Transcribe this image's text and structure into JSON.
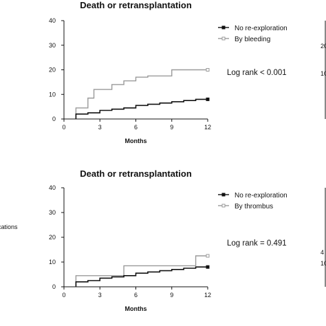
{
  "page": {
    "left_edge_text": "cations"
  },
  "chart_data": [
    {
      "type": "line",
      "title": "Death or retransplantation",
      "xlabel": "Months",
      "ylabel": "",
      "xlim": [
        0,
        12
      ],
      "ylim": [
        0,
        40
      ],
      "x_ticks": [
        0,
        3,
        6,
        9,
        12
      ],
      "y_ticks": [
        0,
        10,
        20,
        30,
        40
      ],
      "series": [
        {
          "name": "No re-exploration",
          "color": "#111111",
          "marker": "filled-square",
          "x": [
            1,
            2,
            3,
            4,
            5,
            6,
            7,
            8,
            9,
            10,
            11,
            12
          ],
          "y": [
            2,
            2.5,
            3.5,
            4,
            4.5,
            5.5,
            6,
            6.5,
            7,
            7.5,
            8,
            8
          ]
        },
        {
          "name": "By bleeding",
          "color": "#999999",
          "marker": "hollow-square",
          "x": [
            1,
            1.5,
            2,
            2.5,
            3,
            4,
            5,
            6,
            7,
            8,
            9,
            12
          ],
          "y": [
            4.5,
            4.5,
            8.5,
            12,
            12,
            14,
            15.5,
            17,
            17.5,
            17.5,
            20,
            20
          ]
        }
      ],
      "annotation": "Log rank < 0.001",
      "legend_position": "top-right",
      "grid": false
    },
    {
      "type": "line",
      "title": "Death or retransplantation",
      "xlabel": "Months",
      "ylabel": "",
      "xlim": [
        0,
        12
      ],
      "ylim": [
        0,
        40
      ],
      "x_ticks": [
        0,
        3,
        6,
        9,
        12
      ],
      "y_ticks": [
        0,
        10,
        20,
        30,
        40
      ],
      "series": [
        {
          "name": "No re-exploration",
          "color": "#111111",
          "marker": "filled-square",
          "x": [
            1,
            2,
            3,
            4,
            5,
            6,
            7,
            8,
            9,
            10,
            11,
            12
          ],
          "y": [
            2,
            2.5,
            3.5,
            4,
            4.5,
            5.5,
            6,
            6.5,
            7,
            7.5,
            8,
            8
          ]
        },
        {
          "name": "By thrombus",
          "color": "#999999",
          "marker": "hollow-square",
          "x": [
            1,
            5,
            10,
            11,
            12
          ],
          "y": [
            4.5,
            8.5,
            8.5,
            12.5,
            12.5
          ]
        }
      ],
      "annotation": "Log rank = 0.491",
      "legend_position": "top-right",
      "grid": false
    }
  ]
}
